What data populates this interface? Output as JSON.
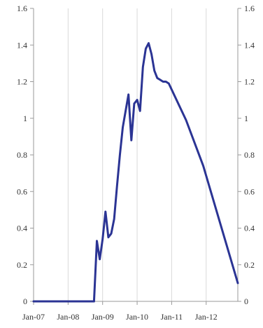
{
  "chart_data": {
    "type": "line",
    "title": "",
    "xlabel": "",
    "ylabel": "",
    "ylim": [
      0,
      1.6
    ],
    "y_ticks": [
      "0",
      "0.2",
      "0.4",
      "0.6",
      "0.8",
      "1",
      "1.2",
      "1.4",
      "1.6"
    ],
    "x_ticks": [
      "Jan-07",
      "Jan-08",
      "Jan-09",
      "Jan-10",
      "Jan-11",
      "Jan-12"
    ],
    "xlim": [
      "2007-01",
      "2012-12"
    ],
    "grid": "vertical",
    "secondary_y_axis": true,
    "colors": {
      "line": "#2b3494",
      "grid": "#d9d9d9",
      "axis": "#9a9a9a"
    },
    "series": [
      {
        "x": [
          "2007-01",
          "2008-01",
          "2008-10",
          "2008-11",
          "2008-12",
          "2009-01",
          "2009-02",
          "2009-03",
          "2009-04",
          "2009-05",
          "2009-06",
          "2009-07",
          "2009-08",
          "2009-09",
          "2009-10",
          "2009-11",
          "2009-12",
          "2010-01",
          "2010-02",
          "2010-03",
          "2010-04",
          "2010-05",
          "2010-06",
          "2010-07",
          "2010-08",
          "2010-09",
          "2010-10",
          "2010-11",
          "2010-12",
          "2011-06",
          "2011-12",
          "2012-06",
          "2012-12"
        ],
        "values": [
          0,
          0,
          0,
          0.33,
          0.23,
          0.34,
          0.49,
          0.35,
          0.37,
          0.45,
          0.63,
          0.8,
          0.95,
          1.04,
          1.13,
          0.88,
          1.08,
          1.1,
          1.04,
          1.28,
          1.38,
          1.41,
          1.35,
          1.26,
          1.22,
          1.21,
          1.2,
          1.2,
          1.19,
          0.99,
          0.74,
          0.42,
          0.1
        ]
      }
    ]
  }
}
